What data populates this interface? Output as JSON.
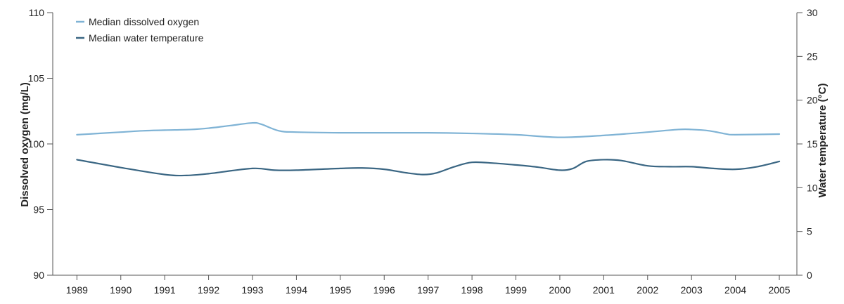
{
  "chart_data": {
    "type": "line",
    "title": "",
    "xlabel": "",
    "ylabel": "Dissolved oxygen (mg/L)",
    "y2label": "Water temperature (°C)",
    "x": [
      1989,
      1990,
      1991,
      1992,
      1993,
      1994,
      1995,
      1996,
      1997,
      1998,
      1999,
      2000,
      2001,
      2002,
      2003,
      2004,
      2005
    ],
    "ylim": [
      90,
      110
    ],
    "yticks": [
      90,
      95,
      100,
      105,
      110
    ],
    "y2lim": [
      0,
      30
    ],
    "y2ticks": [
      0,
      5,
      10,
      15,
      20,
      25,
      30
    ],
    "legend_position": "top-left",
    "grid": false,
    "series": [
      {
        "name": "Median dissolved oxygen",
        "axis": "left",
        "color": "#7fb3d5",
        "points": [
          [
            1989,
            100.7
          ],
          [
            1990,
            100.9
          ],
          [
            1990.5,
            101.0
          ],
          [
            1991,
            101.05
          ],
          [
            1991.6,
            101.1
          ],
          [
            1992,
            101.2
          ],
          [
            1992.5,
            101.4
          ],
          [
            1993,
            101.6
          ],
          [
            1993.2,
            101.5
          ],
          [
            1993.6,
            101.0
          ],
          [
            1994,
            100.9
          ],
          [
            1995,
            100.85
          ],
          [
            1996,
            100.85
          ],
          [
            1997,
            100.85
          ],
          [
            1998,
            100.8
          ],
          [
            1999,
            100.7
          ],
          [
            2000,
            100.5
          ],
          [
            2001,
            100.65
          ],
          [
            2002,
            100.9
          ],
          [
            2002.7,
            101.1
          ],
          [
            2003,
            101.1
          ],
          [
            2003.4,
            101.0
          ],
          [
            2003.8,
            100.75
          ],
          [
            2004,
            100.7
          ],
          [
            2005,
            100.75
          ]
        ]
      },
      {
        "name": "Median water temperature",
        "axis": "right",
        "color": "#3a6683",
        "points": [
          [
            1989,
            13.2
          ],
          [
            1990,
            12.3
          ],
          [
            1991,
            11.5
          ],
          [
            1991.5,
            11.4
          ],
          [
            1992,
            11.6
          ],
          [
            1993,
            12.2
          ],
          [
            1993.5,
            12.0
          ],
          [
            1994,
            12.0
          ],
          [
            1995,
            12.2
          ],
          [
            1995.5,
            12.25
          ],
          [
            1996,
            12.1
          ],
          [
            1996.5,
            11.7
          ],
          [
            1996.9,
            11.5
          ],
          [
            1997.2,
            11.7
          ],
          [
            1997.6,
            12.4
          ],
          [
            1998,
            12.9
          ],
          [
            1998.5,
            12.8
          ],
          [
            1999,
            12.6
          ],
          [
            1999.5,
            12.35
          ],
          [
            2000,
            12.0
          ],
          [
            2000.3,
            12.2
          ],
          [
            2000.6,
            13.0
          ],
          [
            2001,
            13.2
          ],
          [
            2001.4,
            13.1
          ],
          [
            2002,
            12.5
          ],
          [
            2002.5,
            12.4
          ],
          [
            2003,
            12.4
          ],
          [
            2003.5,
            12.2
          ],
          [
            2004,
            12.1
          ],
          [
            2004.5,
            12.4
          ],
          [
            2005,
            13.0
          ]
        ]
      }
    ]
  }
}
